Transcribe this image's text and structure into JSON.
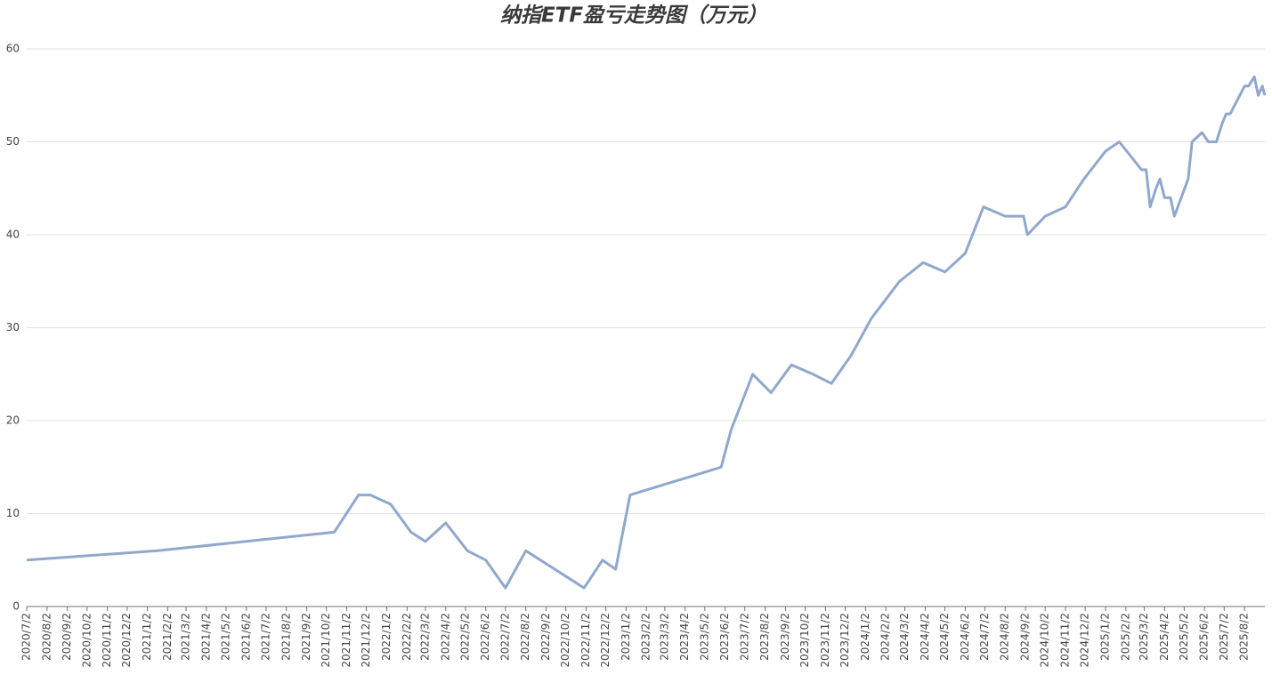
{
  "chart_data": {
    "type": "line",
    "title": "纳指ETF盈亏走势图（万元）",
    "x": [
      "2020/7/2",
      "2021/1/17",
      "2021/10/14",
      "2021/11/20",
      "2021/12/8",
      "2022/1/8",
      "2022/2/8",
      "2022/3/2",
      "2022/4/2",
      "2022/5/5",
      "2022/6/2",
      "2022/7/2",
      "2022/8/2",
      "2022/10/30",
      "2022/11/27",
      "2022/12/17",
      "2023/1/8",
      "2023/5/27",
      "2023/6/11",
      "2023/7/14",
      "2023/8/11",
      "2023/9/11",
      "2023/10/14",
      "2023/11/11",
      "2023/12/11",
      "2024/1/11",
      "2024/2/23",
      "2024/3/30",
      "2024/5/2",
      "2024/6/2",
      "2024/6/30",
      "2024/8/2",
      "2024/8/30",
      "2024/9/5",
      "2024/10/2",
      "2024/11/2",
      "2024/11/30",
      "2025/1/2",
      "2025/1/23",
      "2025/2/26",
      "2025/3/5",
      "2025/3/11",
      "2025/3/20",
      "2025/3/26",
      "2025/4/2",
      "2025/4/11",
      "2025/4/17",
      "2025/5/8",
      "2025/5/14",
      "2025/5/29",
      "2025/6/8",
      "2025/6/20",
      "2025/6/29",
      "2025/7/5",
      "2025/7/11",
      "2025/8/2",
      "2025/8/8",
      "2025/8/17",
      "2025/8/23",
      "2025/8/29",
      "2025/9/2"
    ],
    "values": [
      5,
      6,
      8,
      12,
      12,
      11,
      8,
      7,
      9,
      6,
      5,
      2,
      6,
      2,
      5,
      4,
      12,
      15,
      19,
      25,
      23,
      26,
      25,
      24,
      27,
      31,
      35,
      37,
      36,
      38,
      43,
      42,
      42,
      40,
      42,
      43,
      46,
      49,
      50,
      47,
      47,
      43,
      45,
      46,
      44,
      44,
      42,
      46,
      50,
      51,
      50,
      50,
      52,
      53,
      53,
      56,
      56,
      57,
      55,
      56,
      55
    ],
    "color": "#8fa8cc",
    "xlim": [
      "2020/7/2",
      "2025/9/2"
    ],
    "xticks": [
      "2020/7/2",
      "2020/8/2",
      "2020/9/2",
      "2020/10/2",
      "2020/11/2",
      "2020/12/2",
      "2021/1/2",
      "2021/2/2",
      "2021/3/2",
      "2021/4/2",
      "2021/5/2",
      "2021/6/2",
      "2021/7/2",
      "2021/8/2",
      "2021/9/2",
      "2021/10/2",
      "2021/11/2",
      "2021/12/2",
      "2022/1/2",
      "2022/2/2",
      "2022/3/2",
      "2022/4/2",
      "2022/5/2",
      "2022/6/2",
      "2022/7/2",
      "2022/8/2",
      "2022/9/2",
      "2022/10/2",
      "2022/11/2",
      "2022/12/2",
      "2023/1/2",
      "2023/2/2",
      "2023/3/2",
      "2023/4/2",
      "2023/5/2",
      "2023/6/2",
      "2023/7/2",
      "2023/8/2",
      "2023/9/2",
      "2023/10/2",
      "2023/11/2",
      "2023/12/2",
      "2024/1/2",
      "2024/2/2",
      "2024/3/2",
      "2024/4/2",
      "2024/5/2",
      "2024/6/2",
      "2024/7/2",
      "2024/8/2",
      "2024/9/2",
      "2024/10/2",
      "2024/11/2",
      "2024/12/2",
      "2025/1/2",
      "2025/2/2",
      "2025/3/2",
      "2025/4/2",
      "2025/5/2",
      "2025/6/2",
      "2025/7/2",
      "2025/8/2"
    ],
    "ylim": [
      0,
      60
    ],
    "yticks": [
      0,
      10,
      20,
      30,
      40,
      50,
      60
    ],
    "grid": true
  }
}
